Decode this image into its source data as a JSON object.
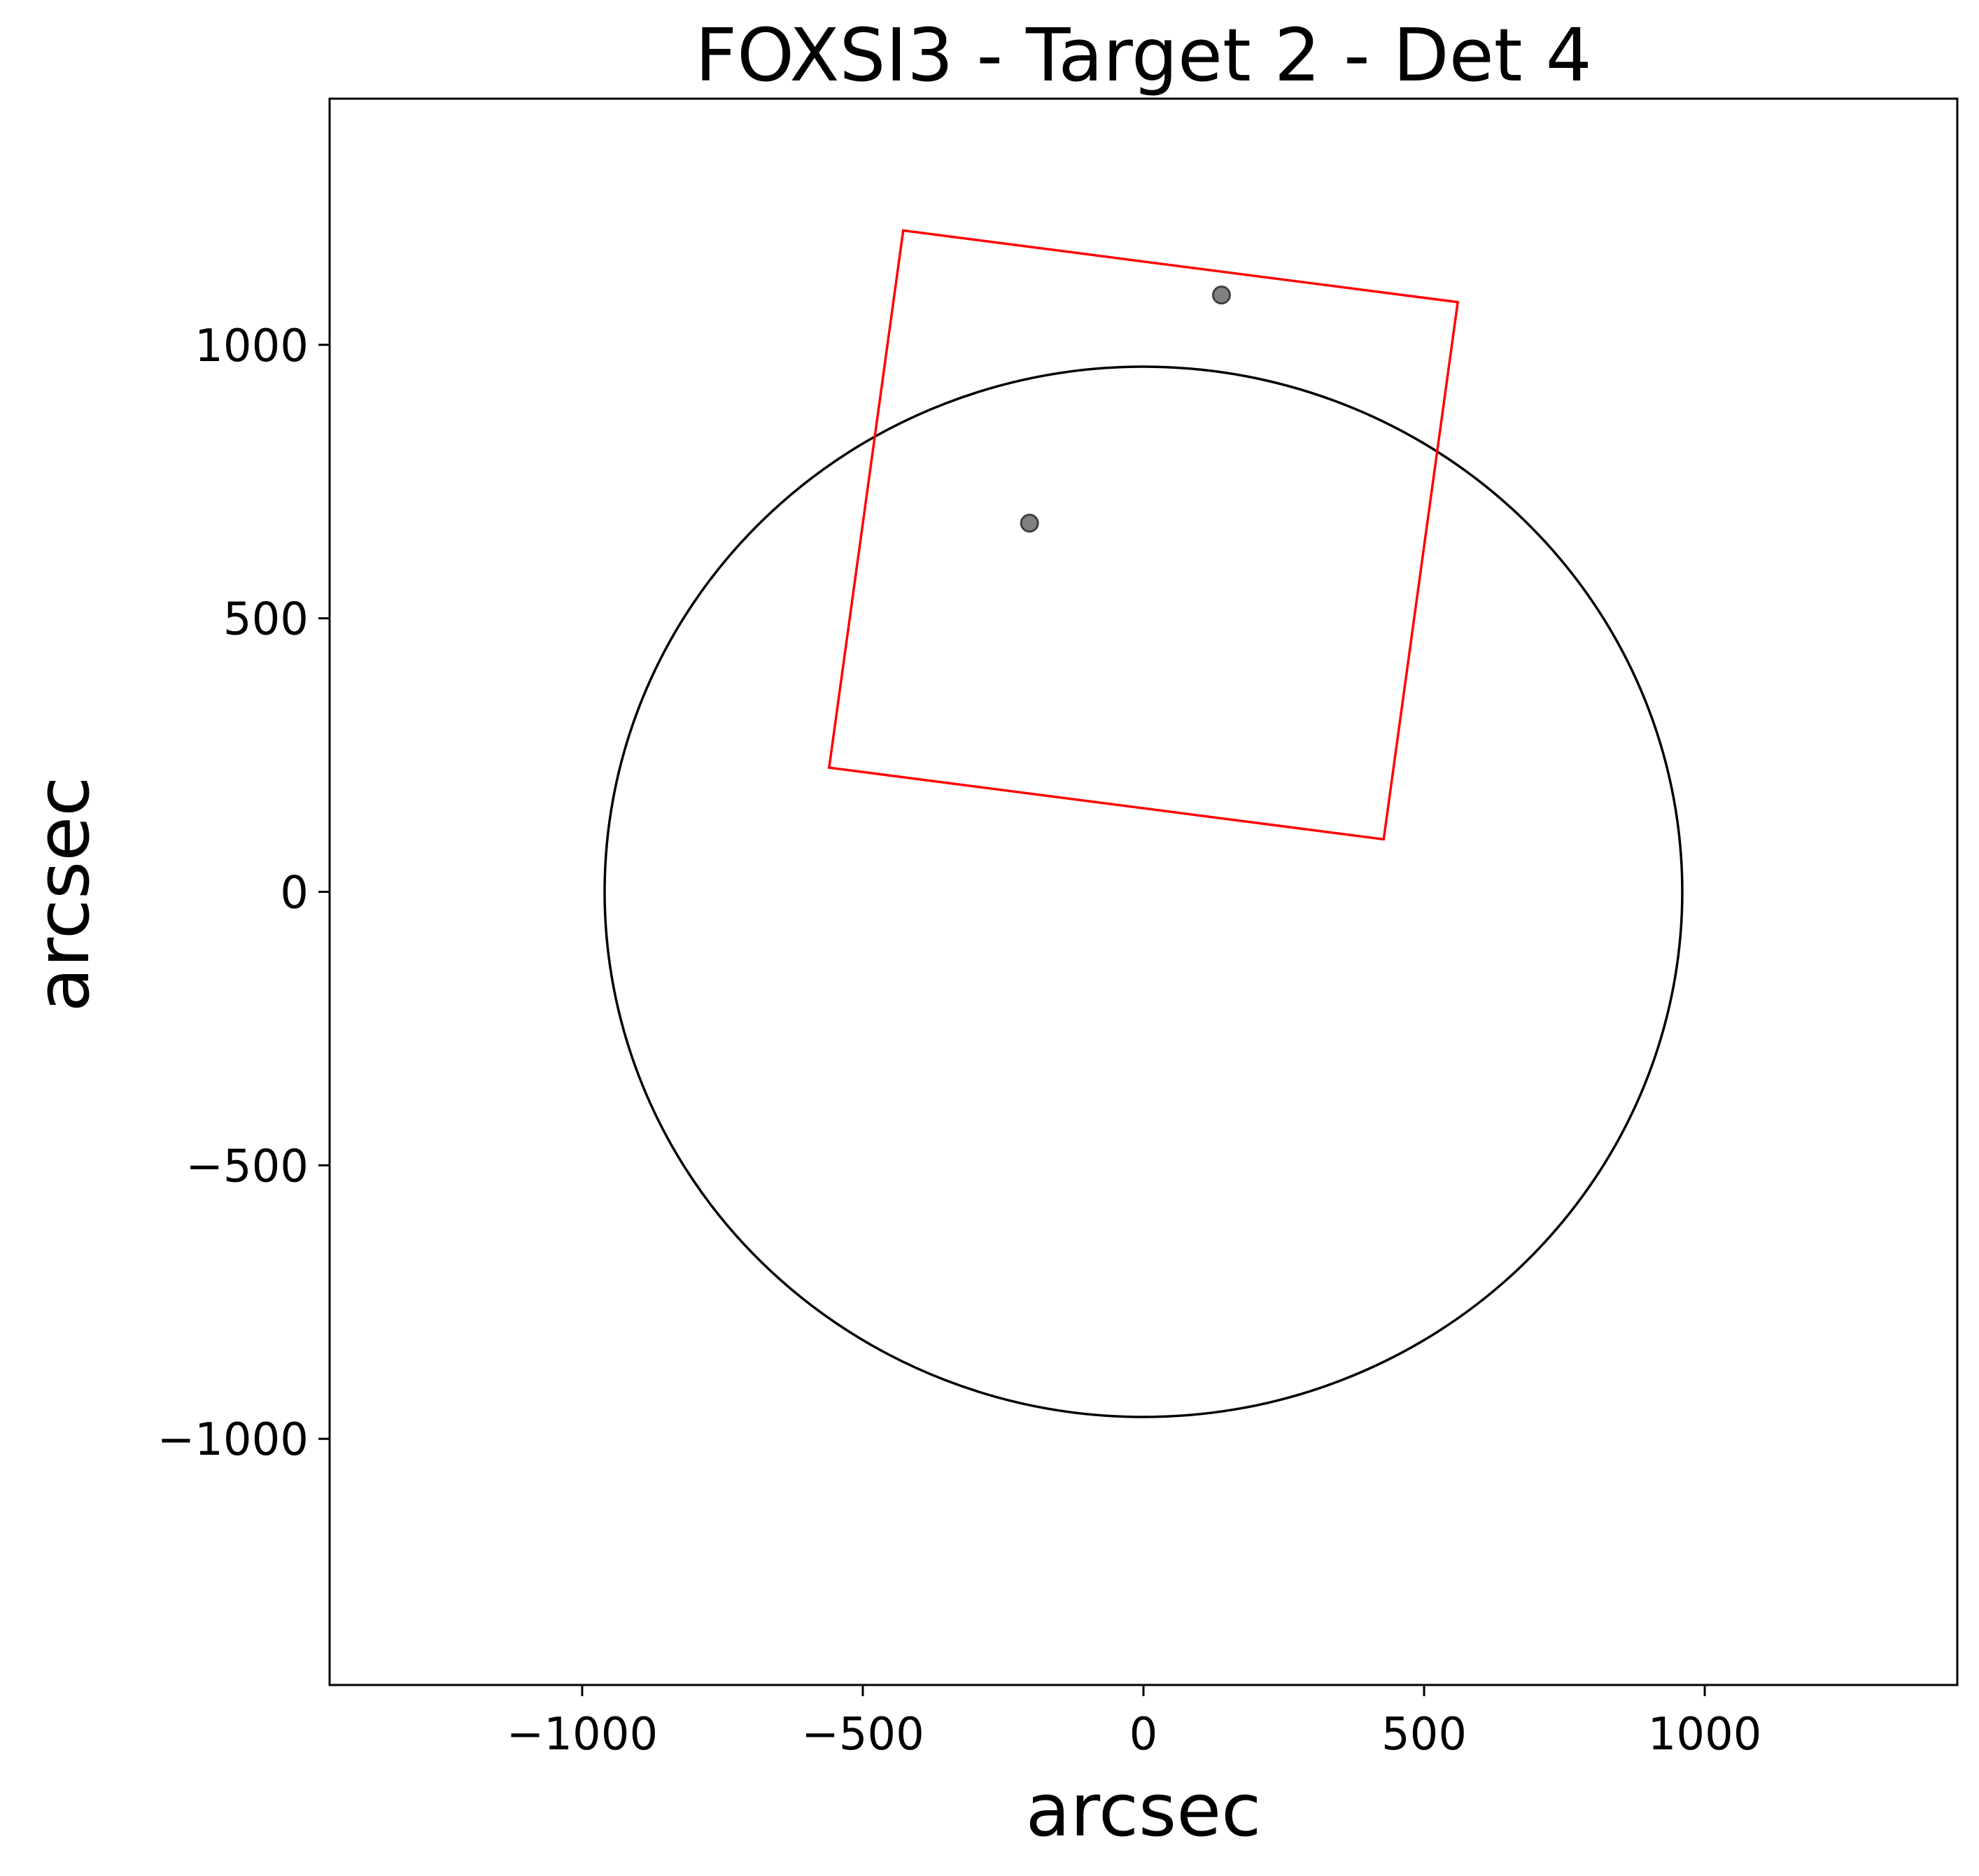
{
  "chart_data": {
    "type": "scatter",
    "title": "FOXSI3 - Target 2 - Det 4",
    "xlabel": "arcsec",
    "ylabel": "arcsec",
    "xlim": [
      -1450,
      1450
    ],
    "ylim": [
      -1450,
      1450
    ],
    "grid": false,
    "x_ticks": [
      -1000,
      -500,
      0,
      500,
      1000
    ],
    "y_ticks": [
      -1000,
      -500,
      0,
      500,
      1000
    ],
    "x_tick_labels": [
      "−1000",
      "−500",
      "0",
      "500",
      "1000"
    ],
    "y_tick_labels": [
      "−1000",
      "−500",
      "0",
      "500",
      "1000"
    ],
    "solar_disk": {
      "center": [
        0,
        0
      ],
      "radius": 960,
      "color": "#000000"
    },
    "detector_fov": {
      "color": "#ff0000",
      "corners": [
        [
          -428,
          1209
        ],
        [
          560,
          1078
        ],
        [
          428,
          96
        ],
        [
          -560,
          227
        ]
      ]
    },
    "points": {
      "color": "#808080",
      "edge_color": "#404040",
      "x": [
        -203,
        139
      ],
      "y": [
        674,
        1091
      ]
    }
  }
}
